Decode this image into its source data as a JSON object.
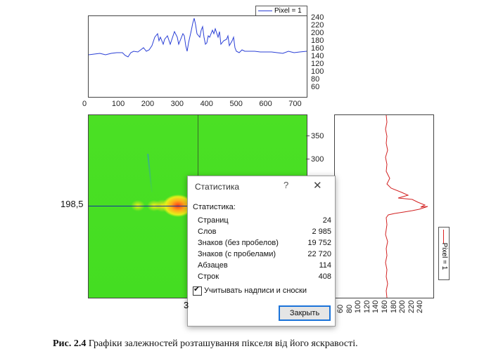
{
  "top_chart": {
    "legend": "Pixel = 1",
    "x_ticks": [
      "0",
      "100",
      "200",
      "300",
      "400",
      "500",
      "600",
      "700"
    ],
    "y_ticks": [
      "240",
      "220",
      "200",
      "180",
      "160",
      "140",
      "120",
      "100",
      "80",
      "60"
    ],
    "series_color": "#2a3fd6"
  },
  "heatmap": {
    "y_readout": "198,5",
    "x_readout_partial": "3",
    "y_ticks": [
      "350",
      "300"
    ]
  },
  "right_chart": {
    "legend": "Pixel = 1",
    "x_ticks": [
      "60",
      "80",
      "100",
      "120",
      "140",
      "160",
      "180",
      "200",
      "220",
      "240"
    ],
    "series_color": "#d22222"
  },
  "dialog": {
    "title": "Статистика",
    "help": "?",
    "close_glyph": "✕",
    "heading": "Статистика:",
    "rows": [
      {
        "label": "Страниц",
        "value": "24"
      },
      {
        "label": "Слов",
        "value": "2 985"
      },
      {
        "label": "Знаков (без пробелов)",
        "value": "19 752"
      },
      {
        "label": "Знаков (с пробелами)",
        "value": "22 720"
      },
      {
        "label": "Абзацев",
        "value": "114"
      },
      {
        "label": "Строк",
        "value": "408"
      }
    ],
    "checkbox_label": "Учитывать надписи и сноски",
    "checkbox_checked": true,
    "close_button": "Закрыть"
  },
  "caption": {
    "bold": "Рис. 2.4",
    "text": " Графіки залежностей розташування пікселя від його яскравості."
  }
}
